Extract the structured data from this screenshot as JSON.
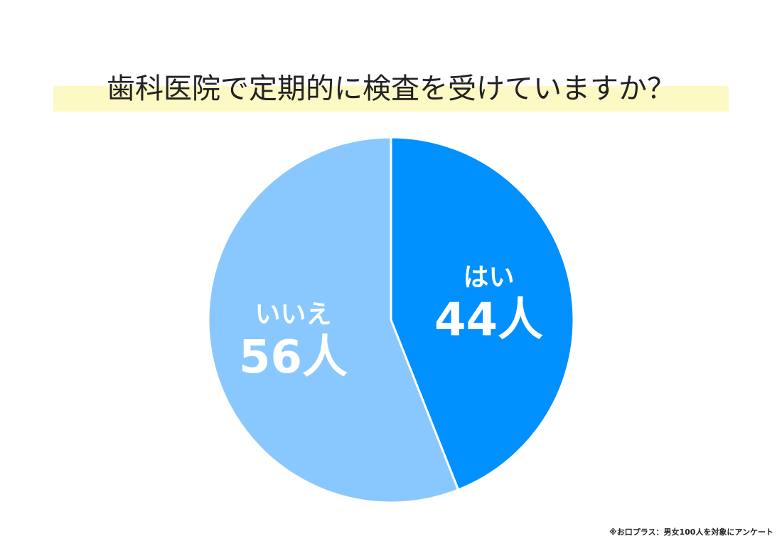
{
  "chart_data": {
    "type": "pie",
    "title": "歯科医院で定期的に検査を受けていますか？",
    "categories": [
      "はい",
      "いいえ"
    ],
    "values": [
      44,
      56
    ],
    "value_labels": [
      "44人",
      "56人"
    ],
    "colors": [
      "#0090ff",
      "#88c8ff"
    ],
    "note": "※お口プラス：男女100人を対象にアンケート"
  }
}
